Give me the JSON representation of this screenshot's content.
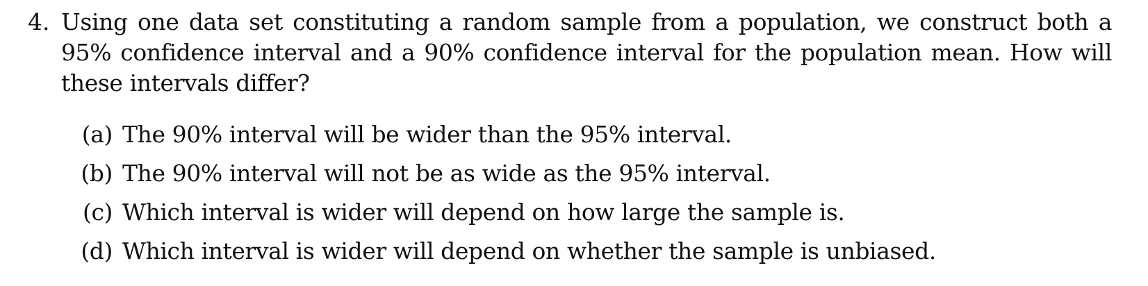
{
  "question": {
    "number": "4.",
    "text": "Using one data set constituting a random sample from a population, we construct both a 95% confidence interval and a 90% confidence interval for the population mean.  How will these intervals differ?",
    "options": [
      {
        "label": "(a)",
        "text": "The 90% interval will be wider than the 95% interval."
      },
      {
        "label": "(b)",
        "text": "The 90% interval will not be as wide as the 95% interval."
      },
      {
        "label": "(c)",
        "text": "Which interval is wider will depend on how large the sample is."
      },
      {
        "label": "(d)",
        "text": "Which interval is wider will depend on whether the sample is unbiased."
      }
    ]
  }
}
